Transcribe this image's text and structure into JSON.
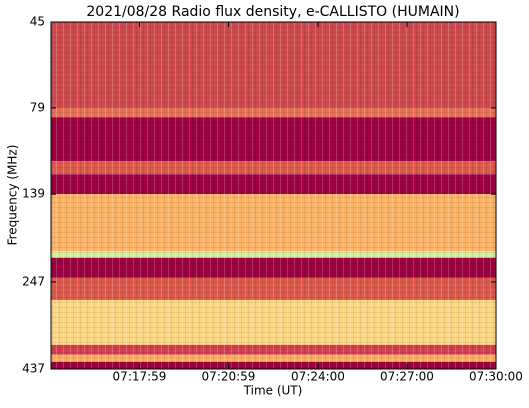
{
  "chart_data": {
    "type": "spectrogram",
    "title": "2021/08/28  Radio flux density, e-CALLISTO (HUMAIN)",
    "xlabel": "Time (UT)",
    "ylabel": "Frequency (MHz)",
    "xlim": [
      "07:15:00",
      "07:30:00"
    ],
    "xticks": [
      "07:17:59",
      "07:20:59",
      "07:24:00",
      "07:27:00",
      "07:30:00"
    ],
    "ylim": [
      45,
      437
    ],
    "yticks": [
      45,
      79,
      139,
      247,
      437
    ],
    "ylog": true,
    "yinverted": true,
    "bands": [
      {
        "lo": 45,
        "hi": 79,
        "color": "#cf4a4d"
      },
      {
        "lo": 79,
        "hi": 84,
        "color": "#e8705a"
      },
      {
        "lo": 84,
        "hi": 112,
        "color": "#9e0142"
      },
      {
        "lo": 112,
        "hi": 122,
        "color": "#e05a4c"
      },
      {
        "lo": 122,
        "hi": 139,
        "color": "#9e0142"
      },
      {
        "lo": 139,
        "hi": 202,
        "color": "#fdb467"
      },
      {
        "lo": 202,
        "hi": 211,
        "color": "#d6ee9b"
      },
      {
        "lo": 211,
        "hi": 240,
        "color": "#9e0142"
      },
      {
        "lo": 240,
        "hi": 278,
        "color": "#dc5a4b"
      },
      {
        "lo": 278,
        "hi": 373,
        "color": "#fdd884"
      },
      {
        "lo": 373,
        "hi": 398,
        "color": "#d53e4f"
      },
      {
        "lo": 398,
        "hi": 417,
        "color": "#fdae61"
      },
      {
        "lo": 417,
        "hi": 437,
        "color": "#9e0142"
      }
    ]
  }
}
